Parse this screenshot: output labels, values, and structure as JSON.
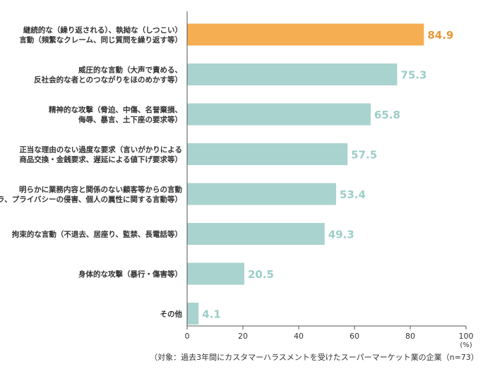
{
  "chart_data": {
    "type": "bar",
    "orientation": "horizontal",
    "categories": [
      [
        "継続的な（繰り返される）、執拗な（しつこい）",
        "言動（頻繁なクレーム、同じ質問を繰り返す等）"
      ],
      [
        "威圧的な言動（大声で責める、",
        "反社会的な者とのつながりをほのめかす等）"
      ],
      [
        "精神的な攻撃（脅迫、中傷、名誉棄損、",
        "侮辱、暴言、土下座の要求等）"
      ],
      [
        "正当な理由のない過度な要求（言いがかりによる",
        "商品交換・金銭要求、遅延による値下げ要求等）"
      ],
      [
        "明らかに業務内容と関係のない顧客等からの言動",
        "（セクハラ、プライバシーの侵害、個人の属性に関する言動等）"
      ],
      [
        "拘束的な言動（不退去、居座り、監禁、長電話等）"
      ],
      [
        "身体的な攻撃（暴行・傷害等）"
      ],
      [
        "その他"
      ]
    ],
    "values": [
      84.9,
      75.3,
      65.8,
      57.5,
      53.4,
      49.3,
      20.5,
      4.1
    ],
    "value_labels": [
      "84.9",
      "75.3",
      "65.8",
      "57.5",
      "53.4",
      "49.3",
      "20.5",
      "4.1"
    ],
    "xlim": [
      0,
      100
    ],
    "xticks": [
      "0",
      "20",
      "40",
      "60",
      "80",
      "100"
    ],
    "unit": "(%)",
    "grid": false,
    "colors": {
      "highlight": "#F6AE52",
      "highlight_text": "#E8983A",
      "default": "#A9D3CE",
      "default_text": "#9CCEC8",
      "axis": "#555555"
    }
  },
  "note": "（対象：過去3年間にカスタマーハラスメントを受けたスーパーマーケット業の企業（n=73）"
}
